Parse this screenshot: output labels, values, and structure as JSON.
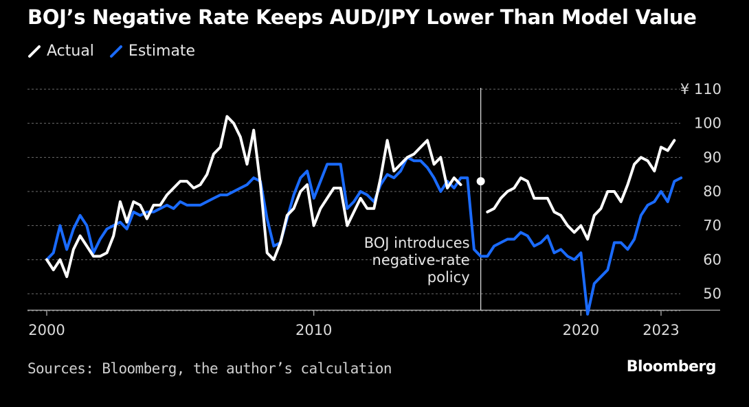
{
  "title": "BOJ’s Negative Rate Keeps AUD/JPY Lower Than Model Value",
  "source": "Sources: Bloomberg, the author’s calculation",
  "brand": "Bloomberg",
  "colors": {
    "actual": "#ffffff",
    "estimate": "#1a6bff",
    "grid": "#6e6e6e",
    "background": "#000000"
  },
  "chart_data": {
    "type": "line",
    "title": "BOJ’s Negative Rate Keeps AUD/JPY Lower Than Model Value",
    "ylabel": "",
    "xlabel": "",
    "ylim": [
      45,
      110
    ],
    "xlim": [
      2000,
      2023.7
    ],
    "y_ticks": [
      110,
      100,
      90,
      80,
      70,
      60,
      50
    ],
    "y_tick_labels": [
      "¥ 110",
      "100",
      "90",
      "80",
      "70",
      "60",
      "50"
    ],
    "x_ticks": [
      2000,
      2010,
      2020,
      2023
    ],
    "x_tick_labels": [
      "2000",
      "2010",
      "2020",
      "2023"
    ],
    "grid": "horizontal dashed",
    "legend_position": "top-left",
    "series": [
      {
        "name": "Actual",
        "color": "#ffffff",
        "points": [
          [
            2000.0,
            60
          ],
          [
            2000.25,
            57
          ],
          [
            2000.5,
            60
          ],
          [
            2000.75,
            55
          ],
          [
            2001.0,
            63
          ],
          [
            2001.25,
            67
          ],
          [
            2001.5,
            64
          ],
          [
            2001.75,
            61
          ],
          [
            2002.0,
            61
          ],
          [
            2002.25,
            62
          ],
          [
            2002.5,
            67
          ],
          [
            2002.75,
            77
          ],
          [
            2003.0,
            71
          ],
          [
            2003.25,
            77
          ],
          [
            2003.5,
            76
          ],
          [
            2003.75,
            72
          ],
          [
            2004.0,
            76
          ],
          [
            2004.25,
            76
          ],
          [
            2004.5,
            79
          ],
          [
            2004.75,
            81
          ],
          [
            2005.0,
            83
          ],
          [
            2005.25,
            83
          ],
          [
            2005.5,
            81
          ],
          [
            2005.75,
            82
          ],
          [
            2006.0,
            85
          ],
          [
            2006.25,
            91
          ],
          [
            2006.5,
            93
          ],
          [
            2006.75,
            102
          ],
          [
            2007.0,
            100
          ],
          [
            2007.25,
            96
          ],
          [
            2007.5,
            88
          ],
          [
            2007.75,
            98
          ],
          [
            2008.0,
            82
          ],
          [
            2008.25,
            62
          ],
          [
            2008.5,
            60
          ],
          [
            2008.75,
            65
          ],
          [
            2009.0,
            73
          ],
          [
            2009.25,
            75
          ],
          [
            2009.5,
            80
          ],
          [
            2009.75,
            82
          ],
          [
            2010.0,
            70
          ],
          [
            2010.25,
            75
          ],
          [
            2010.5,
            78
          ],
          [
            2010.75,
            81
          ],
          [
            2011.0,
            81
          ],
          [
            2011.25,
            70
          ],
          [
            2011.5,
            74
          ],
          [
            2011.75,
            78
          ],
          [
            2012.0,
            75
          ],
          [
            2012.25,
            75
          ],
          [
            2012.5,
            84
          ],
          [
            2012.75,
            95
          ],
          [
            2013.0,
            86
          ],
          [
            2013.25,
            88
          ],
          [
            2013.5,
            90
          ],
          [
            2013.75,
            91
          ],
          [
            2014.0,
            93
          ],
          [
            2014.25,
            95
          ],
          [
            2014.5,
            88
          ],
          [
            2014.75,
            90
          ],
          [
            2015.0,
            81
          ],
          [
            2015.25,
            84
          ],
          [
            2015.5,
            82
          ]
        ]
      },
      {
        "name": "Actual",
        "color": "#ffffff",
        "points": [
          [
            2016.5,
            74
          ],
          [
            2016.75,
            75
          ],
          [
            2017.0,
            78
          ],
          [
            2017.25,
            80
          ],
          [
            2017.5,
            81
          ],
          [
            2017.75,
            84
          ],
          [
            2018.0,
            83
          ],
          [
            2018.25,
            78
          ],
          [
            2018.5,
            78
          ],
          [
            2018.75,
            78
          ],
          [
            2019.0,
            74
          ],
          [
            2019.25,
            73
          ],
          [
            2019.5,
            70
          ],
          [
            2019.75,
            68
          ],
          [
            2020.0,
            70
          ],
          [
            2020.25,
            66
          ],
          [
            2020.5,
            73
          ],
          [
            2020.75,
            75
          ],
          [
            2021.0,
            80
          ],
          [
            2021.25,
            80
          ],
          [
            2021.5,
            77
          ],
          [
            2021.75,
            82
          ],
          [
            2022.0,
            88
          ],
          [
            2022.25,
            90
          ],
          [
            2022.5,
            89
          ],
          [
            2022.75,
            86
          ],
          [
            2023.0,
            93
          ],
          [
            2023.25,
            92
          ],
          [
            2023.5,
            95
          ]
        ]
      },
      {
        "name": "Estimate",
        "color": "#1a6bff",
        "points": [
          [
            2000.0,
            60
          ],
          [
            2000.25,
            62
          ],
          [
            2000.5,
            70
          ],
          [
            2000.75,
            63
          ],
          [
            2001.0,
            69
          ],
          [
            2001.25,
            73
          ],
          [
            2001.5,
            70
          ],
          [
            2001.75,
            62
          ],
          [
            2002.0,
            66
          ],
          [
            2002.25,
            69
          ],
          [
            2002.5,
            70
          ],
          [
            2002.75,
            71
          ],
          [
            2003.0,
            69
          ],
          [
            2003.25,
            74
          ],
          [
            2003.5,
            73
          ],
          [
            2003.75,
            74
          ],
          [
            2004.0,
            74
          ],
          [
            2004.25,
            75
          ],
          [
            2004.5,
            76
          ],
          [
            2004.75,
            75
          ],
          [
            2005.0,
            77
          ],
          [
            2005.25,
            76
          ],
          [
            2005.5,
            76
          ],
          [
            2005.75,
            76
          ],
          [
            2006.0,
            77
          ],
          [
            2006.25,
            78
          ],
          [
            2006.5,
            79
          ],
          [
            2006.75,
            79
          ],
          [
            2007.0,
            80
          ],
          [
            2007.25,
            81
          ],
          [
            2007.5,
            82
          ],
          [
            2007.75,
            84
          ],
          [
            2008.0,
            83
          ],
          [
            2008.25,
            72
          ],
          [
            2008.5,
            64
          ],
          [
            2008.75,
            65
          ],
          [
            2009.0,
            72
          ],
          [
            2009.25,
            79
          ],
          [
            2009.5,
            84
          ],
          [
            2009.75,
            86
          ],
          [
            2010.0,
            78
          ],
          [
            2010.25,
            83
          ],
          [
            2010.5,
            88
          ],
          [
            2010.75,
            88
          ],
          [
            2011.0,
            88
          ],
          [
            2011.25,
            75
          ],
          [
            2011.5,
            77
          ],
          [
            2011.75,
            80
          ],
          [
            2012.0,
            79
          ],
          [
            2012.25,
            77
          ],
          [
            2012.5,
            82
          ],
          [
            2012.75,
            85
          ],
          [
            2013.0,
            84
          ],
          [
            2013.25,
            86
          ],
          [
            2013.5,
            90
          ],
          [
            2013.75,
            89
          ],
          [
            2014.0,
            89
          ],
          [
            2014.25,
            87
          ],
          [
            2014.5,
            84
          ],
          [
            2014.75,
            80
          ],
          [
            2015.0,
            83
          ],
          [
            2015.25,
            81
          ],
          [
            2015.5,
            84
          ],
          [
            2015.75,
            84
          ],
          [
            2016.0,
            63
          ],
          [
            2016.25,
            61
          ],
          [
            2016.5,
            61
          ],
          [
            2016.75,
            64
          ],
          [
            2017.0,
            65
          ],
          [
            2017.25,
            66
          ],
          [
            2017.5,
            66
          ],
          [
            2017.75,
            68
          ],
          [
            2018.0,
            67
          ],
          [
            2018.25,
            64
          ],
          [
            2018.5,
            65
          ],
          [
            2018.75,
            67
          ],
          [
            2019.0,
            62
          ],
          [
            2019.25,
            63
          ],
          [
            2019.5,
            61
          ],
          [
            2019.75,
            60
          ],
          [
            2020.0,
            62
          ],
          [
            2020.25,
            44
          ],
          [
            2020.5,
            53
          ],
          [
            2020.75,
            55
          ],
          [
            2021.0,
            57
          ],
          [
            2021.25,
            65
          ],
          [
            2021.5,
            65
          ],
          [
            2021.75,
            63
          ],
          [
            2022.0,
            66
          ],
          [
            2022.25,
            73
          ],
          [
            2022.5,
            76
          ],
          [
            2022.75,
            77
          ],
          [
            2023.0,
            80
          ],
          [
            2023.25,
            77
          ],
          [
            2023.5,
            83
          ],
          [
            2023.75,
            84
          ]
        ]
      }
    ],
    "highlight_point": {
      "x": 2016.25,
      "y": 83
    },
    "vertical_line": {
      "x": 2016.25
    },
    "annotation": [
      "BOJ introduces",
      "negative-rate",
      "policy"
    ]
  }
}
